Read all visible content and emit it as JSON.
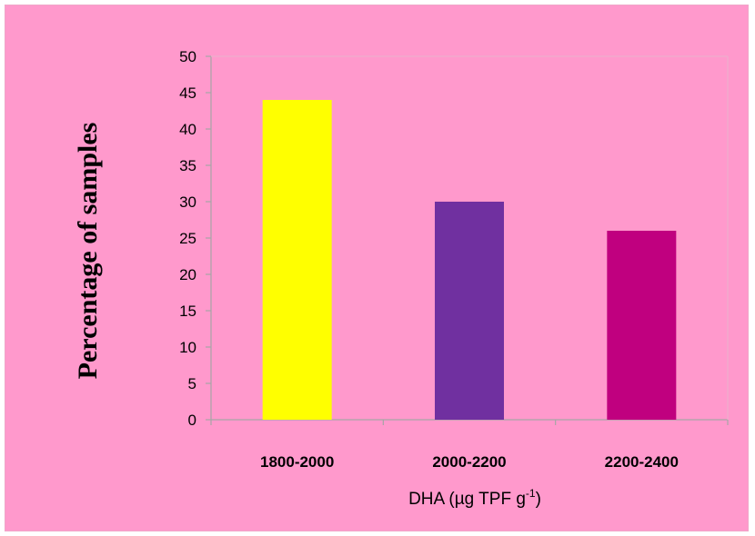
{
  "chart_data": {
    "type": "bar",
    "categories": [
      "1800-2000",
      "2000-2200",
      "2200-2400"
    ],
    "values": [
      44,
      30,
      26
    ],
    "colors": [
      "#ffff00",
      "#7030a0",
      "#c0007f"
    ],
    "xlabel_main": "DHA (µg TPF g",
    "xlabel_sup": "-1",
    "xlabel_end": ")",
    "ylabel": "Percentage of samples",
    "ylim": [
      0,
      50
    ],
    "yticks": [
      "0",
      "5",
      "10",
      "15",
      "20",
      "25",
      "30",
      "35",
      "40",
      "45",
      "50"
    ],
    "grid": false,
    "legend": "none"
  },
  "colors": {
    "background": "#ff99cc",
    "axis": "#a6a6a6"
  }
}
